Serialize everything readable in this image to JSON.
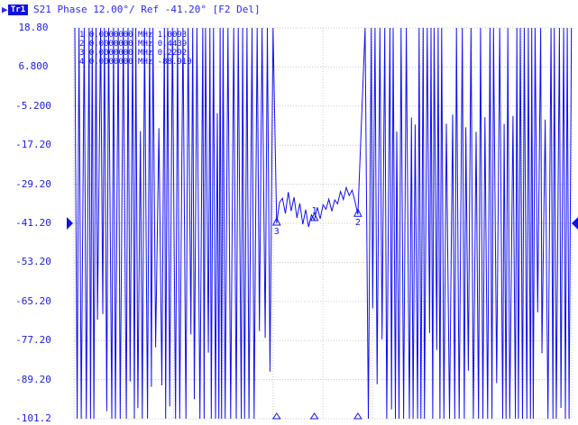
{
  "header": {
    "trace_badge": "Tr1",
    "text": "S21 Phase 12.00°/ Ref -41.20° [F2 Del]"
  },
  "chart_data": {
    "type": "line",
    "title": "S21 Phase 12.00°/ Ref -41.20° [F2 Del]",
    "y_tick_labels": [
      "18.80",
      "6.800",
      "-5.200",
      "-17.20",
      "-29.20",
      "-41.20",
      "-53.20",
      "-65.20",
      "-77.20",
      "-89.20",
      "-101.2"
    ],
    "ylim": [
      -101.2,
      18.8
    ],
    "scale_per_div": 12.0,
    "reference_value": -41.2,
    "grid": true,
    "x_divisions": 10,
    "series": [
      {
        "color": "#1010f0",
        "passband_values": [
          -41.2,
          -34.8,
          -33.5,
          -38.2,
          -31.6,
          -37.4,
          -33.2,
          -39.5,
          -35.1,
          -41.5,
          -37.0,
          -42.3,
          -38.6,
          -40.2,
          -36.3,
          -39.8,
          -35.5,
          -36.9,
          -33.8,
          -37.5,
          -34.0,
          -35.2,
          -31.4,
          -33.9,
          -30.2,
          -32.7,
          -31.0,
          -34.5,
          -38.5
        ]
      }
    ],
    "markers": [
      {
        "label": "1",
        "y": -39.8
      },
      {
        "label": "2",
        "y": -38.5
      },
      {
        "label": "3",
        "y": -41.2
      }
    ],
    "marker_table_rows": [
      "1 0.0000000 MHz  1.0093",
      "2 0.0000000 MHz  0.4439",
      "3 0.0000000 MHz  0.2292",
      "4 0.0000000 MHz -88.910"
    ]
  }
}
